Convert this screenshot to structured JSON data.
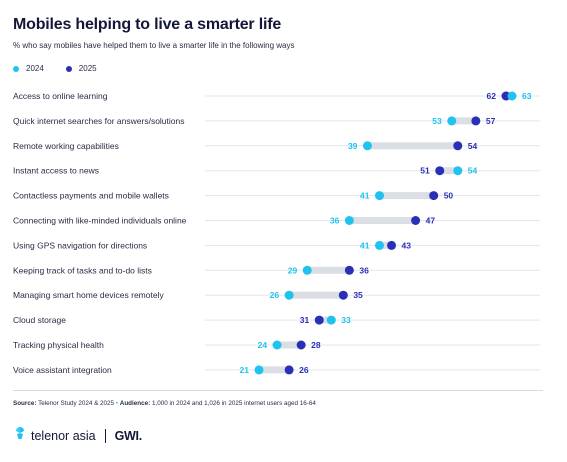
{
  "header": {
    "title": "Mobiles helping to live a smarter life",
    "subtitle": "% who say mobiles have helped them to live a smarter life in the following ways"
  },
  "legend": [
    {
      "label": "2024",
      "color": "#1fc3f0"
    },
    {
      "label": "2025",
      "color": "#2b2fb8"
    }
  ],
  "chart_data": {
    "type": "dumbbell",
    "categories": [
      "Access to online learning",
      "Quick internet searches for answers/solutions",
      "Remote working capabilities",
      "Instant access to news",
      "Contactless payments and mobile wallets",
      "Connecting with like-minded individuals online",
      "Using GPS navigation for directions",
      "Keeping track of tasks and to-do lists",
      "Managing smart home devices remotely",
      "Cloud storage",
      "Tracking physical health",
      "Voice assistant integration"
    ],
    "series": [
      {
        "name": "2024",
        "color": "#1fc3f0",
        "values": [
          63,
          53,
          39,
          54,
          41,
          36,
          41,
          29,
          26,
          33,
          24,
          21
        ]
      },
      {
        "name": "2025",
        "color": "#2b2fb8",
        "values": [
          62,
          57,
          54,
          51,
          50,
          47,
          43,
          36,
          35,
          31,
          28,
          26
        ]
      }
    ],
    "xlim": [
      0,
      65
    ],
    "grid": true,
    "legend_position": "top-left"
  },
  "footer": {
    "source_label": "Source:",
    "source_text": "Telenor Study 2024 & 2025",
    "audience_label": "Audience:",
    "audience_text": "1,000 in 2024 and 1,026 in 2025 internet users aged 16-64",
    "separator": "•"
  },
  "brand": {
    "telenor": "telenor asia",
    "gwi": "GWI."
  }
}
